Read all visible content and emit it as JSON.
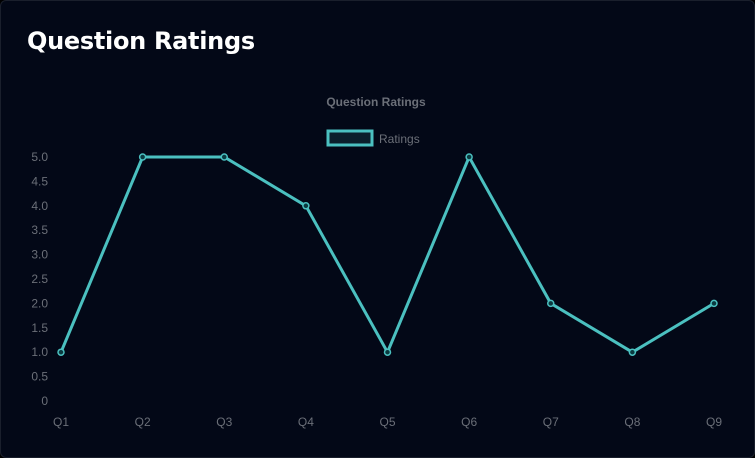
{
  "card": {
    "title": "Question Ratings"
  },
  "chart_data": {
    "type": "line",
    "title": "Question Ratings",
    "categories": [
      "Q1",
      "Q2",
      "Q3",
      "Q4",
      "Q5",
      "Q6",
      "Q7",
      "Q8",
      "Q9"
    ],
    "series": [
      {
        "name": "Ratings",
        "values": [
          1,
          5,
          5,
          4,
          1,
          5,
          2,
          1,
          2
        ],
        "color": "#4bc0c0"
      }
    ],
    "ylim": [
      0,
      5
    ],
    "yticks": [
      0,
      0.5,
      1.0,
      1.5,
      2.0,
      2.5,
      3.0,
      3.5,
      4.0,
      4.5,
      5.0
    ],
    "ytick_labels": [
      "0",
      "0.5",
      "1.0",
      "1.5",
      "2.0",
      "2.5",
      "3.0",
      "3.5",
      "4.0",
      "4.5",
      "5.0"
    ],
    "grid": false,
    "legend": "top",
    "xlabel": "",
    "ylabel": ""
  }
}
